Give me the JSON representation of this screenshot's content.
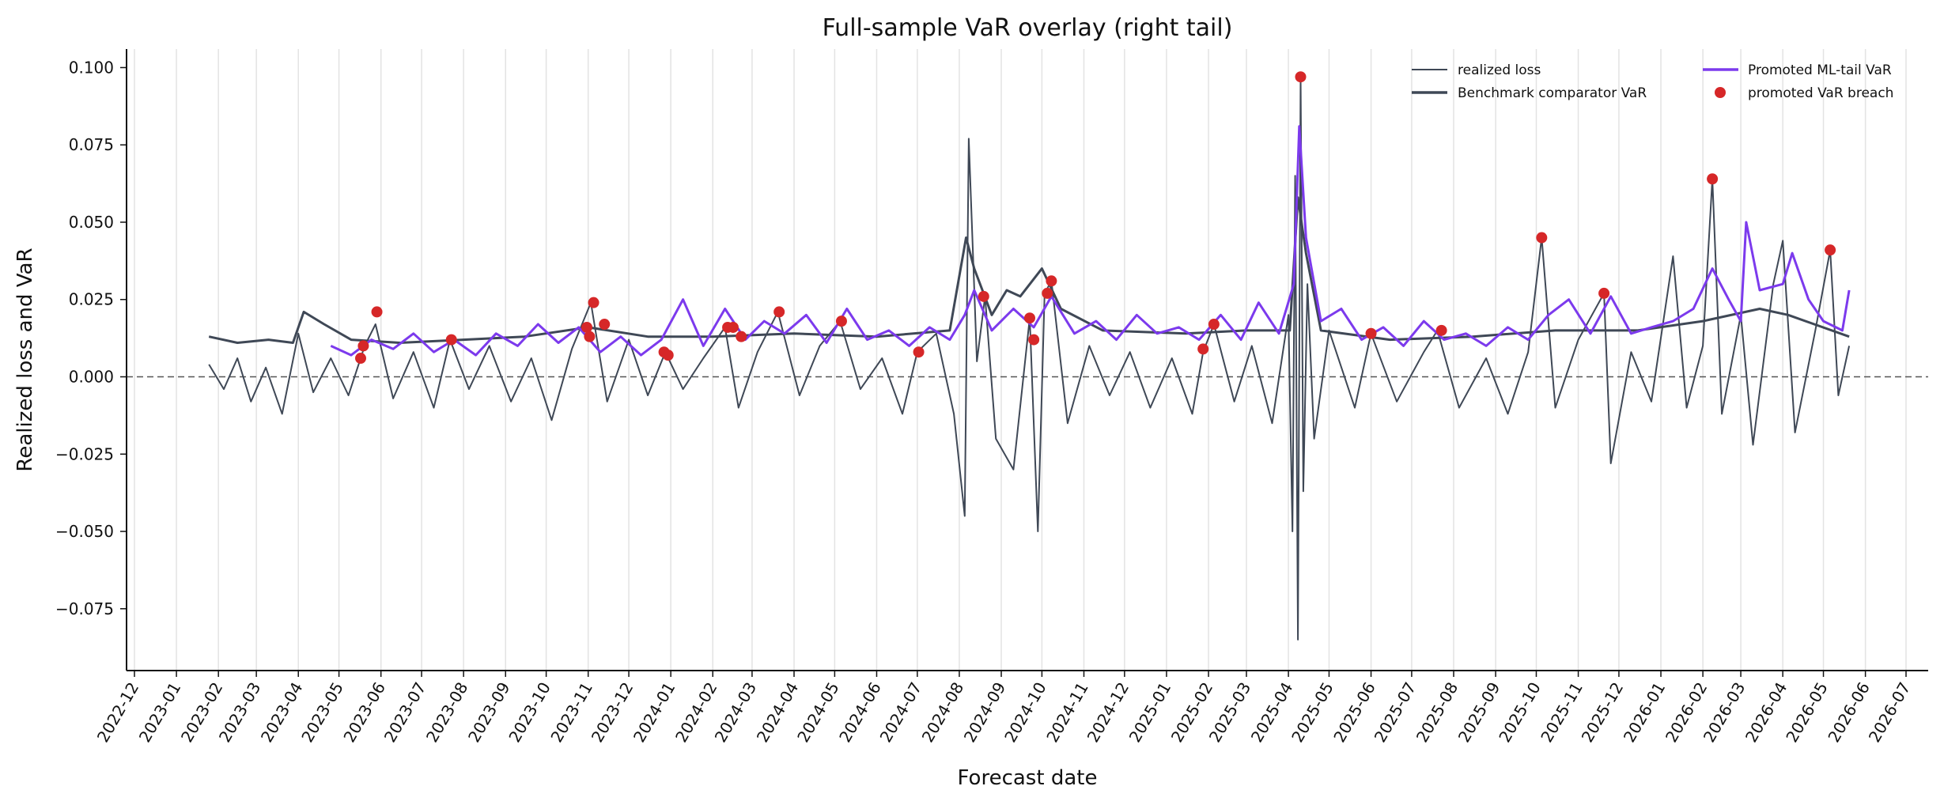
{
  "chart_data": {
    "type": "line",
    "title": "Full-sample VaR overlay (right tail)",
    "xlabel": "Forecast date",
    "ylabel": "Realized loss and VaR",
    "xlim": [
      "2022-12-01",
      "2026-07-01"
    ],
    "ylim": [
      -0.095,
      0.106
    ],
    "yticks": [
      -0.075,
      -0.05,
      -0.025,
      0.0,
      0.025,
      0.05,
      0.075,
      0.1
    ],
    "ytick_labels": [
      "−0.075",
      "−0.050",
      "−0.025",
      "0.000",
      "0.025",
      "0.050",
      "0.075",
      "0.100"
    ],
    "xtick_labels": [
      "2022-12",
      "2023-01",
      "2023-02",
      "2023-03",
      "2023-04",
      "2023-05",
      "2023-06",
      "2023-07",
      "2023-08",
      "2023-09",
      "2023-10",
      "2023-11",
      "2023-12",
      "2024-01",
      "2024-02",
      "2024-03",
      "2024-04",
      "2024-05",
      "2024-06",
      "2024-07",
      "2024-08",
      "2024-09",
      "2024-10",
      "2024-11",
      "2024-12",
      "2025-01",
      "2025-02",
      "2025-03",
      "2025-04",
      "2025-05",
      "2025-06",
      "2025-07",
      "2025-08",
      "2025-09",
      "2025-10",
      "2025-11",
      "2025-12",
      "2026-01",
      "2026-02",
      "2026-03",
      "2026-04",
      "2026-05",
      "2026-06",
      "2026-07"
    ],
    "grid": "vertical",
    "zero_line": true,
    "legend": "top-right",
    "series": [
      {
        "name": "realized loss",
        "color": "#3f4856",
        "style": "line-thin",
        "points": [
          [
            "2023-01-25",
            0.004
          ],
          [
            "2023-02-05",
            -0.004
          ],
          [
            "2023-02-15",
            0.006
          ],
          [
            "2023-02-25",
            -0.008
          ],
          [
            "2023-03-08",
            0.003
          ],
          [
            "2023-03-20",
            -0.012
          ],
          [
            "2023-04-01",
            0.014
          ],
          [
            "2023-04-12",
            -0.005
          ],
          [
            "2023-04-25",
            0.006
          ],
          [
            "2023-05-08",
            -0.006
          ],
          [
            "2023-05-20",
            0.01
          ],
          [
            "2023-05-28",
            0.017
          ],
          [
            "2023-06-10",
            -0.007
          ],
          [
            "2023-06-25",
            0.008
          ],
          [
            "2023-07-10",
            -0.01
          ],
          [
            "2023-07-22",
            0.012
          ],
          [
            "2023-08-05",
            -0.004
          ],
          [
            "2023-08-20",
            0.01
          ],
          [
            "2023-09-05",
            -0.008
          ],
          [
            "2023-09-20",
            0.006
          ],
          [
            "2023-10-05",
            -0.014
          ],
          [
            "2023-10-20",
            0.009
          ],
          [
            "2023-11-03",
            0.024
          ],
          [
            "2023-11-15",
            -0.008
          ],
          [
            "2023-12-01",
            0.012
          ],
          [
            "2023-12-15",
            -0.006
          ],
          [
            "2023-12-28",
            0.008
          ],
          [
            "2024-01-10",
            -0.004
          ],
          [
            "2024-01-25",
            0.006
          ],
          [
            "2024-02-10",
            0.016
          ],
          [
            "2024-02-20",
            -0.01
          ],
          [
            "2024-03-05",
            0.008
          ],
          [
            "2024-03-20",
            0.021
          ],
          [
            "2024-04-05",
            -0.006
          ],
          [
            "2024-04-20",
            0.01
          ],
          [
            "2024-05-05",
            0.018
          ],
          [
            "2024-05-20",
            -0.004
          ],
          [
            "2024-06-05",
            0.006
          ],
          [
            "2024-06-20",
            -0.012
          ],
          [
            "2024-07-01",
            0.008
          ],
          [
            "2024-07-15",
            0.014
          ],
          [
            "2024-07-28",
            -0.012
          ],
          [
            "2024-08-05",
            -0.045
          ],
          [
            "2024-08-08",
            0.077
          ],
          [
            "2024-08-14",
            0.005
          ],
          [
            "2024-08-20",
            0.026
          ],
          [
            "2024-08-28",
            -0.02
          ],
          [
            "2024-09-10",
            -0.03
          ],
          [
            "2024-09-22",
            0.019
          ],
          [
            "2024-09-28",
            -0.05
          ],
          [
            "2024-10-03",
            0.027
          ],
          [
            "2024-10-08",
            0.031
          ],
          [
            "2024-10-20",
            -0.015
          ],
          [
            "2024-11-05",
            0.01
          ],
          [
            "2024-11-20",
            -0.006
          ],
          [
            "2024-12-05",
            0.008
          ],
          [
            "2024-12-20",
            -0.01
          ],
          [
            "2025-01-05",
            0.006
          ],
          [
            "2025-01-20",
            -0.012
          ],
          [
            "2025-01-28",
            0.008
          ],
          [
            "2025-02-05",
            0.017
          ],
          [
            "2025-02-20",
            -0.008
          ],
          [
            "2025-03-05",
            0.01
          ],
          [
            "2025-03-20",
            -0.015
          ],
          [
            "2025-04-01",
            0.02
          ],
          [
            "2025-04-04",
            -0.05
          ],
          [
            "2025-04-06",
            0.065
          ],
          [
            "2025-04-08",
            -0.085
          ],
          [
            "2025-04-10",
            0.097
          ],
          [
            "2025-04-12",
            -0.037
          ],
          [
            "2025-04-15",
            0.03
          ],
          [
            "2025-04-20",
            -0.02
          ],
          [
            "2025-05-01",
            0.015
          ],
          [
            "2025-05-20",
            -0.01
          ],
          [
            "2025-06-01",
            0.014
          ],
          [
            "2025-06-20",
            -0.008
          ],
          [
            "2025-07-10",
            0.008
          ],
          [
            "2025-07-20",
            0.015
          ],
          [
            "2025-08-05",
            -0.01
          ],
          [
            "2025-08-25",
            0.006
          ],
          [
            "2025-09-10",
            -0.012
          ],
          [
            "2025-09-25",
            0.008
          ],
          [
            "2025-10-05",
            0.045
          ],
          [
            "2025-10-15",
            -0.01
          ],
          [
            "2025-11-01",
            0.012
          ],
          [
            "2025-11-20",
            0.027
          ],
          [
            "2025-11-25",
            -0.028
          ],
          [
            "2025-12-10",
            0.008
          ],
          [
            "2025-12-25",
            -0.008
          ],
          [
            "2026-01-10",
            0.039
          ],
          [
            "2026-01-20",
            -0.01
          ],
          [
            "2026-02-01",
            0.01
          ],
          [
            "2026-02-08",
            0.064
          ],
          [
            "2026-02-15",
            -0.012
          ],
          [
            "2026-03-01",
            0.02
          ],
          [
            "2026-03-10",
            -0.022
          ],
          [
            "2026-03-25",
            0.03
          ],
          [
            "2026-04-01",
            0.044
          ],
          [
            "2026-04-10",
            -0.018
          ],
          [
            "2026-04-25",
            0.015
          ],
          [
            "2026-05-06",
            0.041
          ],
          [
            "2026-05-12",
            -0.006
          ],
          [
            "2026-05-20",
            0.01
          ]
        ]
      },
      {
        "name": "Benchmark comparator VaR",
        "color": "#3f4856",
        "style": "line-thick",
        "points": [
          [
            "2023-01-25",
            0.013
          ],
          [
            "2023-02-15",
            0.011
          ],
          [
            "2023-03-10",
            0.012
          ],
          [
            "2023-03-28",
            0.011
          ],
          [
            "2023-04-05",
            0.021
          ],
          [
            "2023-04-20",
            0.017
          ],
          [
            "2023-05-10",
            0.012
          ],
          [
            "2023-06-15",
            0.011
          ],
          [
            "2023-08-01",
            0.012
          ],
          [
            "2023-09-15",
            0.013
          ],
          [
            "2023-11-01",
            0.016
          ],
          [
            "2023-12-15",
            0.013
          ],
          [
            "2024-02-01",
            0.013
          ],
          [
            "2024-04-01",
            0.014
          ],
          [
            "2024-06-01",
            0.013
          ],
          [
            "2024-07-25",
            0.015
          ],
          [
            "2024-08-06",
            0.045
          ],
          [
            "2024-08-12",
            0.035
          ],
          [
            "2024-08-25",
            0.02
          ],
          [
            "2024-09-05",
            0.028
          ],
          [
            "2024-09-15",
            0.026
          ],
          [
            "2024-10-01",
            0.035
          ],
          [
            "2024-10-15",
            0.022
          ],
          [
            "2024-11-15",
            0.015
          ],
          [
            "2025-01-15",
            0.014
          ],
          [
            "2025-03-01",
            0.015
          ],
          [
            "2025-04-02",
            0.015
          ],
          [
            "2025-04-08",
            0.058
          ],
          [
            "2025-04-14",
            0.04
          ],
          [
            "2025-04-25",
            0.015
          ],
          [
            "2025-06-15",
            0.012
          ],
          [
            "2025-08-15",
            0.013
          ],
          [
            "2025-10-15",
            0.015
          ],
          [
            "2025-12-15",
            0.015
          ],
          [
            "2026-02-01",
            0.018
          ],
          [
            "2026-03-15",
            0.022
          ],
          [
            "2026-04-05",
            0.02
          ],
          [
            "2026-05-20",
            0.013
          ]
        ]
      },
      {
        "name": "Promoted ML-tail VaR",
        "color": "#7c3aed",
        "style": "line-thick",
        "points": [
          [
            "2023-04-25",
            0.01
          ],
          [
            "2023-05-10",
            0.007
          ],
          [
            "2023-05-25",
            0.012
          ],
          [
            "2023-06-10",
            0.009
          ],
          [
            "2023-06-25",
            0.014
          ],
          [
            "2023-07-10",
            0.008
          ],
          [
            "2023-07-25",
            0.012
          ],
          [
            "2023-08-10",
            0.007
          ],
          [
            "2023-08-25",
            0.014
          ],
          [
            "2023-09-10",
            0.01
          ],
          [
            "2023-09-25",
            0.017
          ],
          [
            "2023-10-10",
            0.011
          ],
          [
            "2023-10-25",
            0.016
          ],
          [
            "2023-11-10",
            0.008
          ],
          [
            "2023-11-25",
            0.013
          ],
          [
            "2023-12-10",
            0.007
          ],
          [
            "2023-12-25",
            0.012
          ],
          [
            "2024-01-10",
            0.025
          ],
          [
            "2024-01-25",
            0.01
          ],
          [
            "2024-02-10",
            0.022
          ],
          [
            "2024-02-25",
            0.012
          ],
          [
            "2024-03-10",
            0.018
          ],
          [
            "2024-03-25",
            0.014
          ],
          [
            "2024-04-10",
            0.02
          ],
          [
            "2024-04-25",
            0.011
          ],
          [
            "2024-05-10",
            0.022
          ],
          [
            "2024-05-25",
            0.012
          ],
          [
            "2024-06-10",
            0.015
          ],
          [
            "2024-06-25",
            0.01
          ],
          [
            "2024-07-10",
            0.016
          ],
          [
            "2024-07-25",
            0.012
          ],
          [
            "2024-08-05",
            0.02
          ],
          [
            "2024-08-12",
            0.028
          ],
          [
            "2024-08-25",
            0.015
          ],
          [
            "2024-09-10",
            0.022
          ],
          [
            "2024-09-25",
            0.016
          ],
          [
            "2024-10-08",
            0.026
          ],
          [
            "2024-10-25",
            0.014
          ],
          [
            "2024-11-10",
            0.018
          ],
          [
            "2024-11-25",
            0.012
          ],
          [
            "2024-12-10",
            0.02
          ],
          [
            "2024-12-25",
            0.014
          ],
          [
            "2025-01-10",
            0.016
          ],
          [
            "2025-01-25",
            0.012
          ],
          [
            "2025-02-10",
            0.02
          ],
          [
            "2025-02-25",
            0.012
          ],
          [
            "2025-03-10",
            0.024
          ],
          [
            "2025-03-25",
            0.014
          ],
          [
            "2025-04-05",
            0.03
          ],
          [
            "2025-04-09",
            0.081
          ],
          [
            "2025-04-14",
            0.045
          ],
          [
            "2025-04-25",
            0.018
          ],
          [
            "2025-05-10",
            0.022
          ],
          [
            "2025-05-25",
            0.012
          ],
          [
            "2025-06-10",
            0.016
          ],
          [
            "2025-06-25",
            0.01
          ],
          [
            "2025-07-10",
            0.018
          ],
          [
            "2025-07-25",
            0.012
          ],
          [
            "2025-08-10",
            0.014
          ],
          [
            "2025-08-25",
            0.01
          ],
          [
            "2025-09-10",
            0.016
          ],
          [
            "2025-09-25",
            0.012
          ],
          [
            "2025-10-10",
            0.02
          ],
          [
            "2025-10-25",
            0.025
          ],
          [
            "2025-11-10",
            0.014
          ],
          [
            "2025-11-25",
            0.026
          ],
          [
            "2025-12-10",
            0.014
          ],
          [
            "2025-12-25",
            0.016
          ],
          [
            "2026-01-10",
            0.018
          ],
          [
            "2026-01-25",
            0.022
          ],
          [
            "2026-02-08",
            0.035
          ],
          [
            "2026-02-20",
            0.025
          ],
          [
            "2026-03-01",
            0.018
          ],
          [
            "2026-03-05",
            0.05
          ],
          [
            "2026-03-15",
            0.028
          ],
          [
            "2026-04-01",
            0.03
          ],
          [
            "2026-04-08",
            0.04
          ],
          [
            "2026-04-20",
            0.025
          ],
          [
            "2026-05-01",
            0.018
          ],
          [
            "2026-05-15",
            0.015
          ],
          [
            "2026-05-20",
            0.028
          ]
        ]
      },
      {
        "name": "promoted VaR breach",
        "color": "#d62728",
        "style": "marker",
        "points": [
          [
            "2023-05-17",
            0.006
          ],
          [
            "2023-05-19",
            0.01
          ],
          [
            "2023-05-29",
            0.021
          ],
          [
            "2023-07-23",
            0.012
          ],
          [
            "2023-10-31",
            0.016
          ],
          [
            "2023-11-02",
            0.013
          ],
          [
            "2023-11-05",
            0.024
          ],
          [
            "2023-11-13",
            0.017
          ],
          [
            "2023-12-27",
            0.008
          ],
          [
            "2023-12-30",
            0.007
          ],
          [
            "2024-02-12",
            0.016
          ],
          [
            "2024-02-16",
            0.016
          ],
          [
            "2024-02-22",
            0.013
          ],
          [
            "2024-03-21",
            0.021
          ],
          [
            "2024-05-06",
            0.018
          ],
          [
            "2024-07-02",
            0.008
          ],
          [
            "2024-08-19",
            0.026
          ],
          [
            "2024-09-22",
            0.019
          ],
          [
            "2024-09-25",
            0.012
          ],
          [
            "2024-10-05",
            0.027
          ],
          [
            "2024-10-08",
            0.031
          ],
          [
            "2025-01-28",
            0.009
          ],
          [
            "2025-02-05",
            0.017
          ],
          [
            "2025-04-10",
            0.097
          ],
          [
            "2025-06-01",
            0.014
          ],
          [
            "2025-07-23",
            0.015
          ],
          [
            "2025-10-05",
            0.045
          ],
          [
            "2025-11-20",
            0.027
          ],
          [
            "2026-02-08",
            0.064
          ],
          [
            "2026-05-06",
            0.041
          ]
        ]
      }
    ]
  }
}
